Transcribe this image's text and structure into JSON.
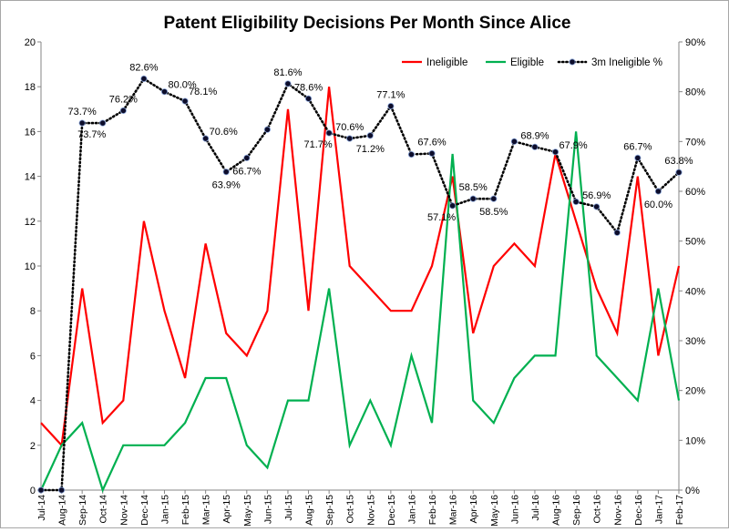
{
  "chart_data": {
    "type": "line",
    "title": "Patent Eligibility Decisions Per Month Since Alice",
    "xlabel": "",
    "ylabel": "",
    "y2label": "",
    "categories": [
      "Jul-14",
      "Aug-14",
      "Sep-14",
      "Oct-14",
      "Nov-14",
      "Dec-14",
      "Jan-15",
      "Feb-15",
      "Mar-15",
      "Apr-15",
      "May-15",
      "Jun-15",
      "Jul-15",
      "Aug-15",
      "Sep-15",
      "Oct-15",
      "Nov-15",
      "Dec-15",
      "Jan-16",
      "Feb-16",
      "Mar-16",
      "Apr-16",
      "May-16",
      "Jun-16",
      "Jul-16",
      "Aug-16",
      "Sep-16",
      "Oct-16",
      "Nov-16",
      "Dec-16",
      "Jan-17",
      "Feb-17"
    ],
    "ylim": [
      0,
      20
    ],
    "y_ticks": [
      0,
      2,
      4,
      6,
      8,
      10,
      12,
      14,
      16,
      18,
      20
    ],
    "y2lim": [
      0,
      90
    ],
    "y2_ticks": [
      "0%",
      "10%",
      "20%",
      "30%",
      "40%",
      "50%",
      "60%",
      "70%",
      "80%",
      "90%"
    ],
    "y2_tick_values": [
      0,
      10,
      20,
      30,
      40,
      50,
      60,
      70,
      80,
      90
    ],
    "grid": false,
    "legend_position": "top-right",
    "series": [
      {
        "name": "Ineligible",
        "color": "#ff0000",
        "axis": "left",
        "style": "solid",
        "values": [
          3,
          2,
          9,
          3,
          4,
          12,
          8,
          5,
          11,
          7,
          6,
          8,
          17,
          8,
          18,
          10,
          9,
          8,
          8,
          10,
          14,
          7,
          10,
          11,
          10,
          15,
          12,
          9,
          7,
          14,
          6,
          10
        ]
      },
      {
        "name": "Eligible",
        "color": "#00b050",
        "axis": "left",
        "style": "solid",
        "values": [
          0,
          2,
          3,
          0,
          2,
          2,
          2,
          3,
          5,
          5,
          2,
          1,
          4,
          4,
          9,
          2,
          4,
          2,
          6,
          3,
          15,
          4,
          3,
          5,
          6,
          6,
          16,
          6,
          5,
          4,
          9,
          4
        ]
      },
      {
        "name": "3m Ineligible %",
        "color": "#000000",
        "axis": "right",
        "style": "dotted-markers",
        "values": [
          0,
          0,
          73.7,
          73.7,
          76.2,
          82.6,
          80.0,
          78.1,
          70.6,
          63.9,
          66.7,
          72.4,
          81.6,
          78.6,
          71.7,
          70.6,
          71.2,
          77.1,
          67.4,
          67.6,
          57.1,
          58.5,
          58.5,
          70.0,
          68.9,
          67.9,
          57.9,
          56.9,
          51.7,
          66.7,
          60.0,
          63.8
        ]
      }
    ],
    "annotations": [
      {
        "index": 2,
        "text": "73.7%",
        "pos": "above"
      },
      {
        "index": 3,
        "text": "73.7%",
        "pos": "below-left"
      },
      {
        "index": 4,
        "text": "76.2%",
        "pos": "above"
      },
      {
        "index": 5,
        "text": "82.6%",
        "pos": "above"
      },
      {
        "index": 6,
        "text": "80.0%",
        "pos": "right"
      },
      {
        "index": 7,
        "text": "78.1%",
        "pos": "right-up"
      },
      {
        "index": 8,
        "text": "70.6%",
        "pos": "right"
      },
      {
        "index": 9,
        "text": "63.9%",
        "pos": "below"
      },
      {
        "index": 10,
        "text": "66.7%",
        "pos": "below"
      },
      {
        "index": 12,
        "text": "81.6%",
        "pos": "above"
      },
      {
        "index": 13,
        "text": "78.6%",
        "pos": "above"
      },
      {
        "index": 14,
        "text": "71.7%",
        "pos": "below-left"
      },
      {
        "index": 15,
        "text": "70.6%",
        "pos": "above"
      },
      {
        "index": 16,
        "text": "71.2%",
        "pos": "below"
      },
      {
        "index": 17,
        "text": "77.1%",
        "pos": "above"
      },
      {
        "index": 19,
        "text": "67.6%",
        "pos": "above"
      },
      {
        "index": 20,
        "text": "57.1%",
        "pos": "below-left"
      },
      {
        "index": 21,
        "text": "58.5%",
        "pos": "above"
      },
      {
        "index": 22,
        "text": "58.5%",
        "pos": "below"
      },
      {
        "index": 24,
        "text": "68.9%",
        "pos": "above"
      },
      {
        "index": 25,
        "text": "67.9%",
        "pos": "right"
      },
      {
        "index": 27,
        "text": "56.9%",
        "pos": "above"
      },
      {
        "index": 29,
        "text": "66.7%",
        "pos": "above"
      },
      {
        "index": 30,
        "text": "60.0%",
        "pos": "below"
      },
      {
        "index": 31,
        "text": "63.8%",
        "pos": "above"
      }
    ]
  }
}
